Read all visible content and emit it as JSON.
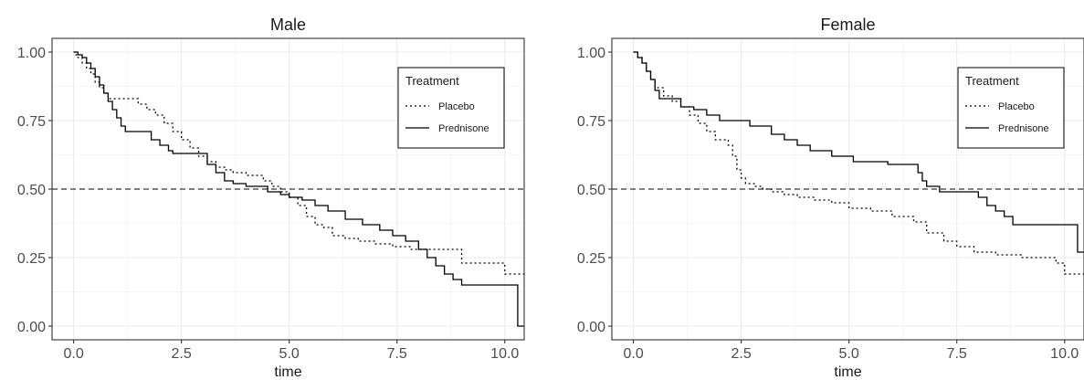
{
  "chart_data": [
    {
      "type": "line",
      "title": "Male",
      "xlabel": "time",
      "ylabel": "",
      "xlim": [
        -0.5,
        10.45
      ],
      "ylim": [
        -0.05,
        1.05
      ],
      "x_ticks": [
        0.0,
        2.5,
        5.0,
        7.5,
        10.0
      ],
      "x_tick_labels": [
        "0.0",
        "2.5",
        "5.0",
        "7.5",
        "10.0"
      ],
      "y_ticks": [
        0.0,
        0.25,
        0.5,
        0.75,
        1.0
      ],
      "y_tick_labels": [
        "0.00",
        "0.25",
        "0.50",
        "0.75",
        "1.00"
      ],
      "grid": true,
      "reference_line": {
        "y": 0.5,
        "style": "dashed"
      },
      "legend": {
        "title": "Treatment",
        "placement": "top-right"
      },
      "series": [
        {
          "name": "Placebo",
          "style": "dotted",
          "x": [
            0,
            0.05,
            0.1,
            0.2,
            0.3,
            0.4,
            0.5,
            0.6,
            0.7,
            0.8,
            0.9,
            1.0,
            1.1,
            1.5,
            1.7,
            1.9,
            2.1,
            2.3,
            2.5,
            2.7,
            2.9,
            3.1,
            3.3,
            3.5,
            3.7,
            4.0,
            4.4,
            4.6,
            4.8,
            5.0,
            5.2,
            5.4,
            5.6,
            5.8,
            6.0,
            6.3,
            6.6,
            7.0,
            7.4,
            7.8,
            8.1,
            8.5,
            9.0,
            9.5,
            10.0,
            10.45
          ],
          "y": [
            1.0,
            0.99,
            0.98,
            0.96,
            0.94,
            0.92,
            0.89,
            0.87,
            0.85,
            0.83,
            0.83,
            0.83,
            0.83,
            0.81,
            0.79,
            0.77,
            0.74,
            0.71,
            0.68,
            0.65,
            0.62,
            0.6,
            0.58,
            0.57,
            0.56,
            0.55,
            0.53,
            0.51,
            0.49,
            0.47,
            0.44,
            0.4,
            0.37,
            0.36,
            0.33,
            0.32,
            0.31,
            0.3,
            0.29,
            0.28,
            0.28,
            0.28,
            0.23,
            0.23,
            0.19,
            0.19
          ]
        },
        {
          "name": "Prednisone",
          "style": "solid",
          "x": [
            0,
            0.1,
            0.2,
            0.3,
            0.4,
            0.5,
            0.6,
            0.7,
            0.8,
            0.9,
            1.0,
            1.1,
            1.2,
            1.8,
            2.0,
            2.2,
            2.3,
            3.1,
            3.3,
            3.5,
            3.7,
            4.0,
            4.5,
            4.8,
            5.0,
            5.3,
            5.6,
            5.9,
            6.3,
            6.7,
            7.1,
            7.4,
            7.7,
            8.0,
            8.2,
            8.4,
            8.6,
            8.8,
            9.0,
            10.3,
            10.45
          ],
          "y": [
            1.0,
            0.99,
            0.98,
            0.96,
            0.94,
            0.91,
            0.88,
            0.85,
            0.82,
            0.79,
            0.76,
            0.73,
            0.71,
            0.68,
            0.66,
            0.64,
            0.63,
            0.59,
            0.56,
            0.53,
            0.52,
            0.51,
            0.49,
            0.48,
            0.47,
            0.46,
            0.44,
            0.42,
            0.39,
            0.37,
            0.35,
            0.33,
            0.31,
            0.28,
            0.25,
            0.22,
            0.19,
            0.17,
            0.15,
            0.0,
            0.0
          ]
        }
      ]
    },
    {
      "type": "line",
      "title": "Female",
      "xlabel": "time",
      "ylabel": "",
      "xlim": [
        -0.5,
        10.45
      ],
      "ylim": [
        -0.05,
        1.05
      ],
      "x_ticks": [
        0.0,
        2.5,
        5.0,
        7.5,
        10.0
      ],
      "x_tick_labels": [
        "0.0",
        "2.5",
        "5.0",
        "7.5",
        "10.0"
      ],
      "y_ticks": [
        0.0,
        0.25,
        0.5,
        0.75,
        1.0
      ],
      "y_tick_labels": [
        "0.00",
        "0.25",
        "0.50",
        "0.75",
        "1.00"
      ],
      "grid": true,
      "reference_line": {
        "y": 0.5,
        "style": "dashed"
      },
      "legend": {
        "title": "Treatment",
        "placement": "top-right"
      },
      "series": [
        {
          "name": "Placebo",
          "style": "dotted",
          "x": [
            0,
            0.1,
            0.2,
            0.3,
            0.4,
            0.5,
            0.7,
            0.9,
            1.1,
            1.3,
            1.5,
            1.7,
            1.9,
            2.2,
            2.3,
            2.4,
            2.5,
            2.6,
            2.8,
            3.0,
            3.2,
            3.5,
            3.8,
            4.2,
            4.6,
            5.0,
            5.5,
            6.0,
            6.5,
            6.8,
            7.2,
            7.5,
            7.9,
            8.4,
            9.0,
            9.5,
            9.8,
            10.0,
            10.45
          ],
          "y": [
            1.0,
            0.98,
            0.96,
            0.93,
            0.9,
            0.87,
            0.84,
            0.82,
            0.8,
            0.77,
            0.74,
            0.71,
            0.68,
            0.66,
            0.62,
            0.57,
            0.54,
            0.52,
            0.51,
            0.5,
            0.49,
            0.48,
            0.47,
            0.46,
            0.45,
            0.43,
            0.42,
            0.4,
            0.38,
            0.34,
            0.31,
            0.29,
            0.27,
            0.26,
            0.25,
            0.25,
            0.23,
            0.19,
            0.19
          ]
        },
        {
          "name": "Prednisone",
          "style": "solid",
          "x": [
            0,
            0.1,
            0.2,
            0.3,
            0.4,
            0.5,
            0.6,
            1.1,
            1.4,
            1.7,
            2.0,
            2.7,
            3.2,
            3.5,
            3.8,
            4.1,
            4.6,
            5.1,
            5.9,
            6.6,
            6.7,
            6.8,
            7.1,
            8.0,
            8.2,
            8.4,
            8.6,
            8.8,
            10.0,
            10.3,
            10.45
          ],
          "y": [
            1.0,
            0.98,
            0.96,
            0.93,
            0.9,
            0.86,
            0.83,
            0.8,
            0.79,
            0.77,
            0.75,
            0.73,
            0.7,
            0.68,
            0.66,
            0.64,
            0.62,
            0.6,
            0.59,
            0.56,
            0.53,
            0.51,
            0.49,
            0.47,
            0.44,
            0.42,
            0.4,
            0.37,
            0.37,
            0.27,
            0.27
          ]
        }
      ]
    }
  ]
}
